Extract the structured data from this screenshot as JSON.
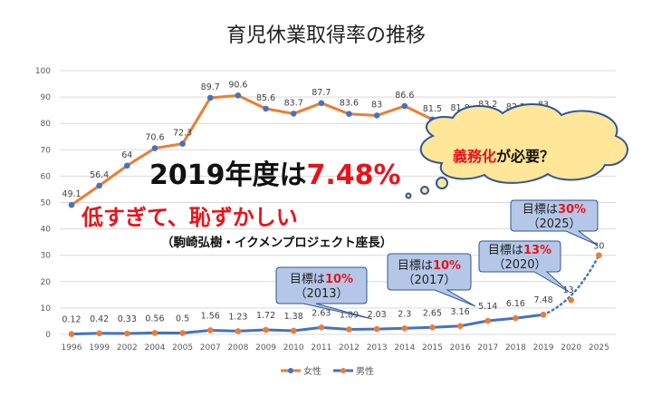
{
  "chart_data": {
    "type": "line",
    "title": "育児休業取得率の推移",
    "categories": [
      "1996",
      "1999",
      "2002",
      "2004",
      "2005",
      "2007",
      "2008",
      "2009",
      "2010",
      "2011",
      "2012",
      "2013",
      "2014",
      "2015",
      "2016",
      "2017",
      "2018",
      "2019",
      "2020",
      "2025"
    ],
    "ylim": [
      0,
      100
    ],
    "yticks": [
      0,
      10,
      20,
      30,
      40,
      50,
      60,
      70,
      80,
      90,
      100
    ],
    "grid": true,
    "legend_position": "bottom",
    "series": [
      {
        "name": "女性",
        "line_color": "#ED7D31",
        "marker_color": "#4472C4",
        "values": [
          49.1,
          56.4,
          64,
          70.6,
          72.3,
          89.7,
          90.6,
          85.6,
          83.7,
          87.7,
          83.6,
          83,
          86.6,
          81.5,
          81.8,
          83.2,
          82.2,
          83,
          null,
          null
        ]
      },
      {
        "name": "男性",
        "line_color": "#4472C4",
        "marker_color": "#ED7D31",
        "values": [
          0.12,
          0.42,
          0.33,
          0.56,
          0.5,
          1.56,
          1.23,
          1.72,
          1.38,
          2.63,
          1.89,
          2.03,
          2.3,
          2.65,
          3.16,
          5.14,
          6.16,
          7.48,
          13,
          30
        ],
        "dotted_from": "2019"
      }
    ],
    "annotations": {
      "headline_prefix": "2019年度は",
      "headline_value": "7.48%",
      "sub_red": "低すぎて、恥ずかしい",
      "sub_quote": "（駒崎弘樹・イクメンプロジェクト座長）",
      "thought_red": "義務化",
      "thought_black": "が必要？",
      "callouts": [
        {
          "prefix": "目標は",
          "value": "10%",
          "year": "（2013）"
        },
        {
          "prefix": "目標は",
          "value": "10%",
          "year": "（2017）"
        },
        {
          "prefix": "目標は",
          "value": "13%",
          "year": "（2020）"
        },
        {
          "prefix": "目標は",
          "value": "30%",
          "year": "（2025）"
        }
      ]
    },
    "colors": {
      "red": "#E8141B",
      "callout_fill": "#B4C7E7",
      "callout_border": "#2F5597",
      "cloud_fill": "#FFE699"
    }
  }
}
